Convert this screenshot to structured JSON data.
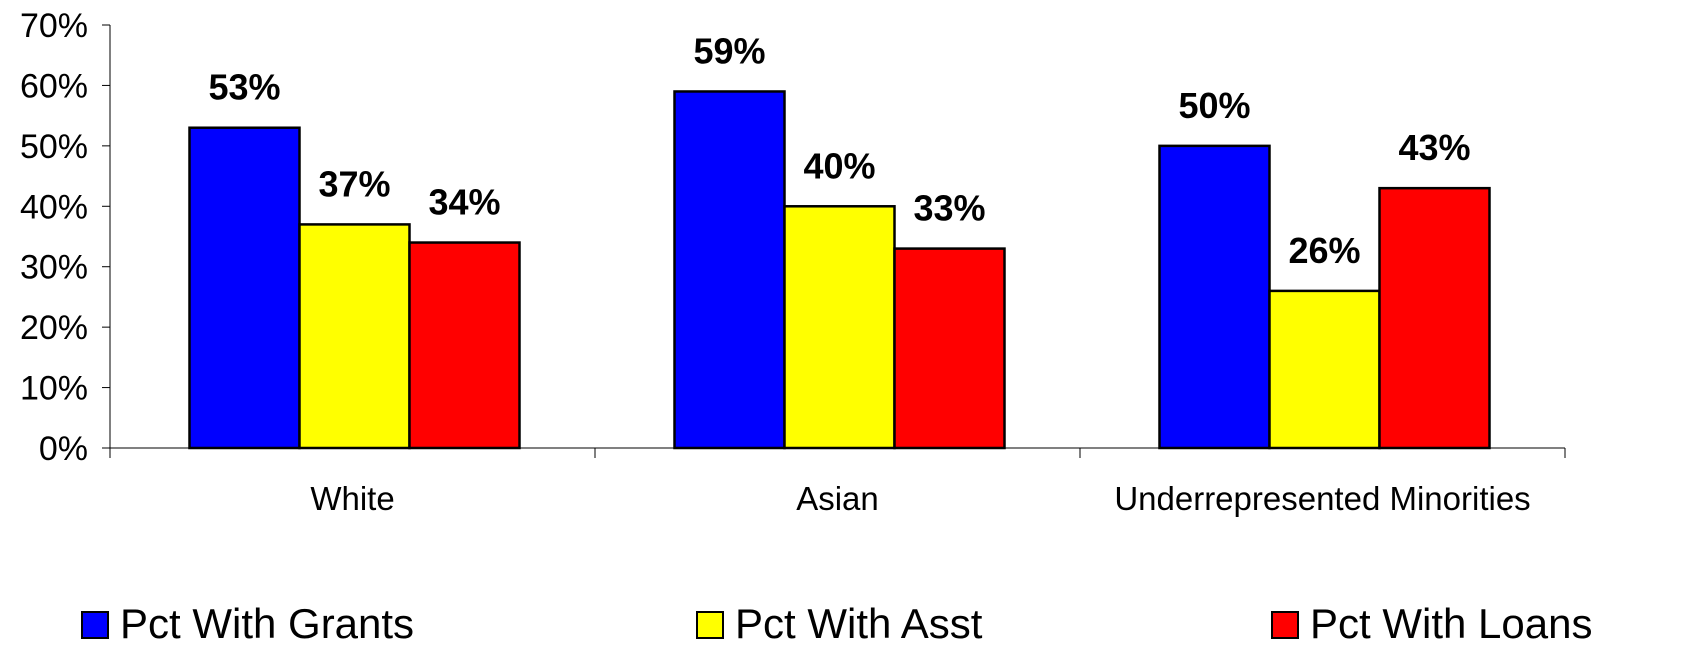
{
  "chart_data": {
    "type": "bar",
    "categories": [
      "White",
      "Asian",
      "Underrepresented Minorities"
    ],
    "series": [
      {
        "name": "Pct With Grants",
        "values": [
          53,
          59,
          50
        ],
        "color": "#0000FF"
      },
      {
        "name": "Pct With Asst",
        "values": [
          37,
          40,
          26
        ],
        "color": "#FFFF00"
      },
      {
        "name": "Pct With Loans",
        "values": [
          34,
          33,
          43
        ],
        "color": "#FF0000"
      }
    ],
    "data_labels": [
      [
        "53%",
        "59%",
        "50%"
      ],
      [
        "37%",
        "40%",
        "26%"
      ],
      [
        "34%",
        "33%",
        "43%"
      ]
    ],
    "y_ticks": [
      "0%",
      "10%",
      "20%",
      "30%",
      "40%",
      "50%",
      "60%",
      "70%"
    ],
    "ylim": [
      0,
      70
    ],
    "grid": false,
    "legend_position": "bottom"
  }
}
